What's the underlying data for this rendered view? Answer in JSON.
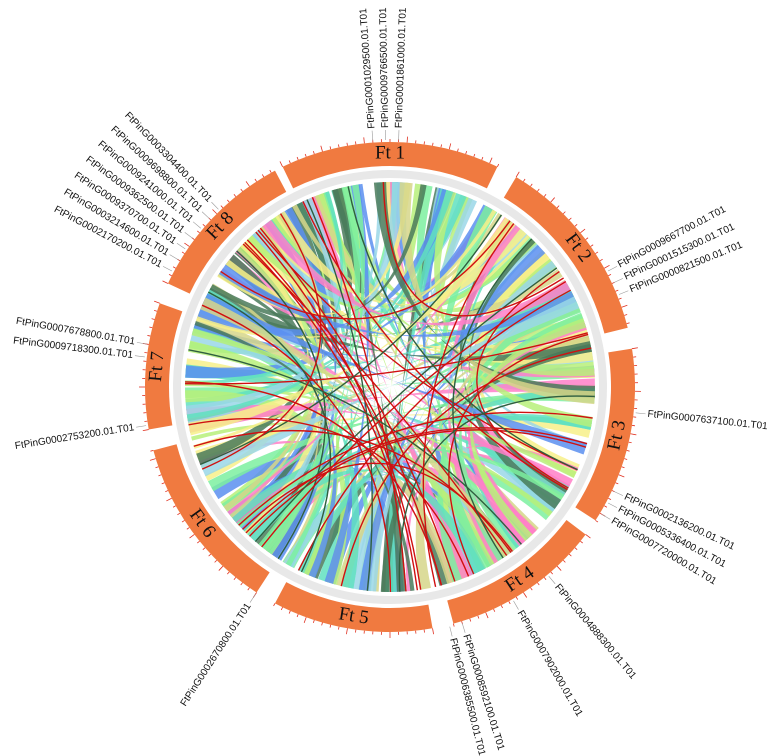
{
  "chromosomes": [
    "Ft 1",
    "Ft 2",
    "Ft 3",
    "Ft 4",
    "Ft 5",
    "Ft 6",
    "Ft 7",
    "Ft 8"
  ],
  "gene_labels": [
    "FtPinG0001029500.01.T01",
    "FtPinG0009766500.01.T01",
    "FtPinG0001861000.01.T01",
    "FtPinG0009667700.01.T01",
    "FtPinG0001515300.01.T01",
    "FtPinG0000821500.01.T01",
    "FtPinG0007637100.01.T01",
    "FtPinG0002136200.01.T01",
    "FtPinG0005336400.01.T01",
    "FtPinG0007720000.01.T01",
    "FtPinG0004888300.01.T01",
    "FtPinG0007902000.01.T01",
    "FtPinG0008592100.01.T01",
    "FtPinG0006385500.01.T01",
    "FtPinG0002670800.01.T01",
    "FtPinG0002753200.01.T01",
    "FtPinG0009718300.01.T01",
    "FtPinG0007678800.01.T01",
    "FtPinG0002170200.01.T01",
    "FtPinG0003214600.01.T01",
    "FtPinG0009370700.01.T01",
    "FtPinG0009362500.01.T01",
    "FtPinG0009241000.01.T01",
    "FtPinG0009698800.01.T01",
    "FtPinG0003304400.01.T01"
  ]
}
